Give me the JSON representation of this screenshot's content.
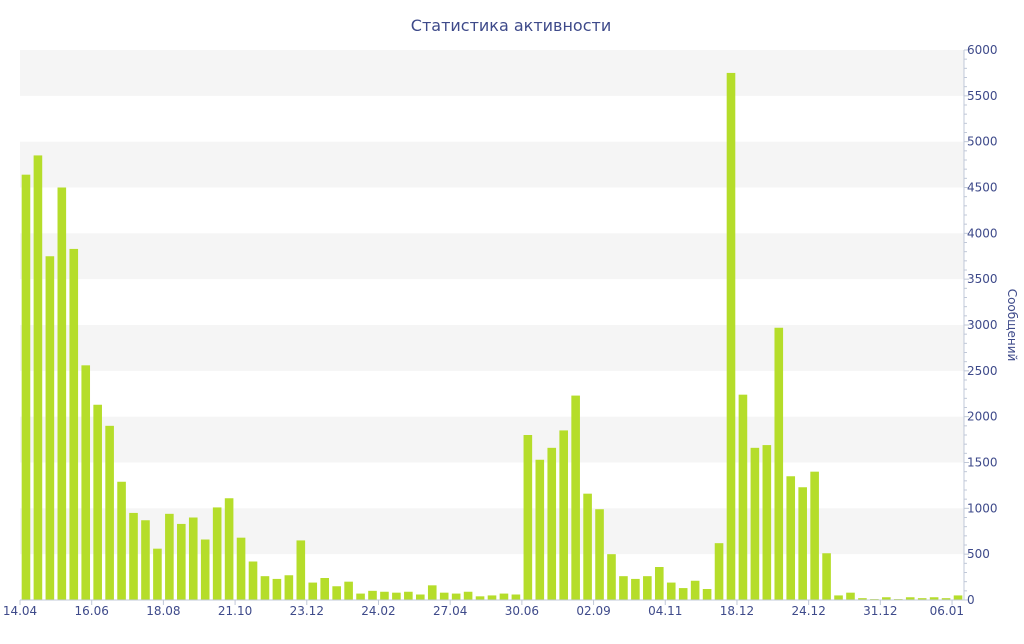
{
  "chart_data": {
    "type": "bar",
    "title": "Статистика активности",
    "xlabel": "",
    "ylabel": "Сообщений",
    "ylim": [
      0,
      6000
    ],
    "y_ticks": [
      0,
      500,
      1000,
      1500,
      2000,
      2500,
      3000,
      3500,
      4000,
      4500,
      5000,
      5500,
      6000
    ],
    "y_axis_side": "right",
    "grid": "alternating-bands",
    "colors": {
      "bar": "#b5dd2a",
      "band": "#f5f5f5",
      "text": "#3e4a8a",
      "axis": "#c0c8d8"
    },
    "x_tick_labels": [
      {
        "label": "14.04",
        "index": 0
      },
      {
        "label": "16.06",
        "index": 6
      },
      {
        "label": "18.08",
        "index": 12
      },
      {
        "label": "21.10",
        "index": 18
      },
      {
        "label": "23.12",
        "index": 24
      },
      {
        "label": "24.02",
        "index": 30
      },
      {
        "label": "27.04",
        "index": 36
      },
      {
        "label": "30.06",
        "index": 42
      },
      {
        "label": "02.09",
        "index": 48
      },
      {
        "label": "04.11",
        "index": 54
      },
      {
        "label": "18.12",
        "index": 60
      },
      {
        "label": "24.12",
        "index": 66
      },
      {
        "label": "31.12",
        "index": 72
      },
      {
        "label": "06.01",
        "index": 78
      }
    ],
    "values": [
      4640,
      4850,
      3750,
      4500,
      3830,
      2560,
      2130,
      1900,
      1290,
      950,
      870,
      560,
      940,
      830,
      900,
      660,
      1010,
      1110,
      680,
      420,
      260,
      230,
      270,
      650,
      190,
      240,
      150,
      200,
      70,
      100,
      90,
      80,
      90,
      60,
      160,
      80,
      70,
      90,
      40,
      50,
      70,
      60,
      1800,
      1530,
      1660,
      1850,
      2230,
      1160,
      990,
      500,
      260,
      230,
      260,
      360,
      190,
      130,
      210,
      120,
      620,
      5750,
      2240,
      1660,
      1690,
      2970,
      1350,
      1230,
      1400,
      510,
      50,
      80,
      20,
      10,
      30,
      10,
      30,
      20,
      30,
      20,
      50
    ]
  }
}
